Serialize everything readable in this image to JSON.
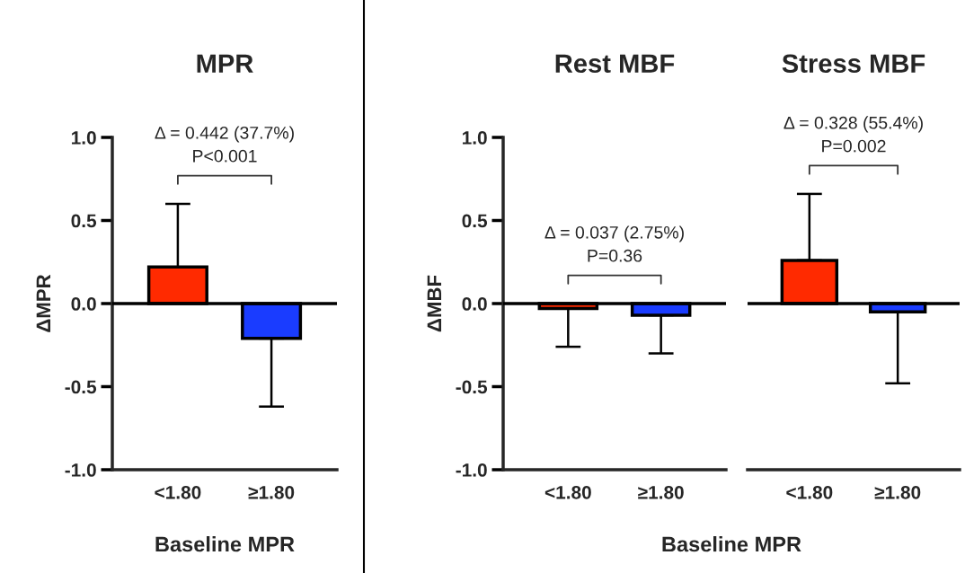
{
  "chart_data": [
    {
      "type": "bar",
      "title": "MPR",
      "xlabel": "Baseline MPR",
      "ylabel": "ΔMPR",
      "categories": [
        "<1.80",
        "≥1.80"
      ],
      "values": [
        0.22,
        -0.21
      ],
      "colors": [
        "#ff2a00",
        "#1a3cff"
      ],
      "errors": [
        [
          0.22,
          0.6
        ],
        [
          -0.62,
          -0.21
        ]
      ],
      "ylim": [
        -1,
        1
      ],
      "yticks": [
        {
          "value": -1,
          "label": "-1.0"
        },
        {
          "value": -0.5,
          "label": "-0.5"
        },
        {
          "value": 0,
          "label": "0.0"
        },
        {
          "value": 0.5,
          "label": "0.5"
        },
        {
          "value": 1,
          "label": "1.0"
        }
      ],
      "ref_lines": [
        {
          "axis": "y",
          "value": 0,
          "color": "#000000"
        }
      ],
      "annotations": [
        "Δ = 0.442 (37.7%)",
        "P<0.001"
      ]
    },
    {
      "type": "bar",
      "title": "Rest MBF",
      "xlabel": "Baseline MPR",
      "ylabel": "ΔMBF",
      "categories": [
        "<1.80",
        "≥1.80"
      ],
      "values": [
        -0.03,
        -0.07
      ],
      "colors": [
        "#ff2a00",
        "#1a3cff"
      ],
      "errors": [
        [
          -0.26,
          -0.03
        ],
        [
          -0.3,
          -0.07
        ]
      ],
      "ylim": [
        -1,
        1
      ],
      "yticks": [
        {
          "value": -1,
          "label": "-1.0"
        },
        {
          "value": -0.5,
          "label": "-0.5"
        },
        {
          "value": 0,
          "label": "0.0"
        },
        {
          "value": 0.5,
          "label": "0.5"
        },
        {
          "value": 1,
          "label": "1.0"
        }
      ],
      "ref_lines": [
        {
          "axis": "y",
          "value": 0,
          "color": "#000000"
        }
      ],
      "annotations": [
        "Δ = 0.037 (2.75%)",
        "P=0.36"
      ]
    },
    {
      "type": "bar",
      "title": "Stress MBF",
      "categories": [
        "<1.80",
        "≥1.80"
      ],
      "values": [
        0.26,
        -0.05
      ],
      "colors": [
        "#ff2a00",
        "#1a3cff"
      ],
      "errors": [
        [
          0.26,
          0.66
        ],
        [
          -0.48,
          -0.05
        ]
      ],
      "ylim": [
        -1,
        1
      ],
      "tick_labels": "x",
      "ref_lines": [
        {
          "axis": "y",
          "value": 0,
          "color": "#000000"
        }
      ],
      "annotations": [
        "Δ = 0.328 (55.4%)",
        "P=0.002"
      ]
    }
  ]
}
